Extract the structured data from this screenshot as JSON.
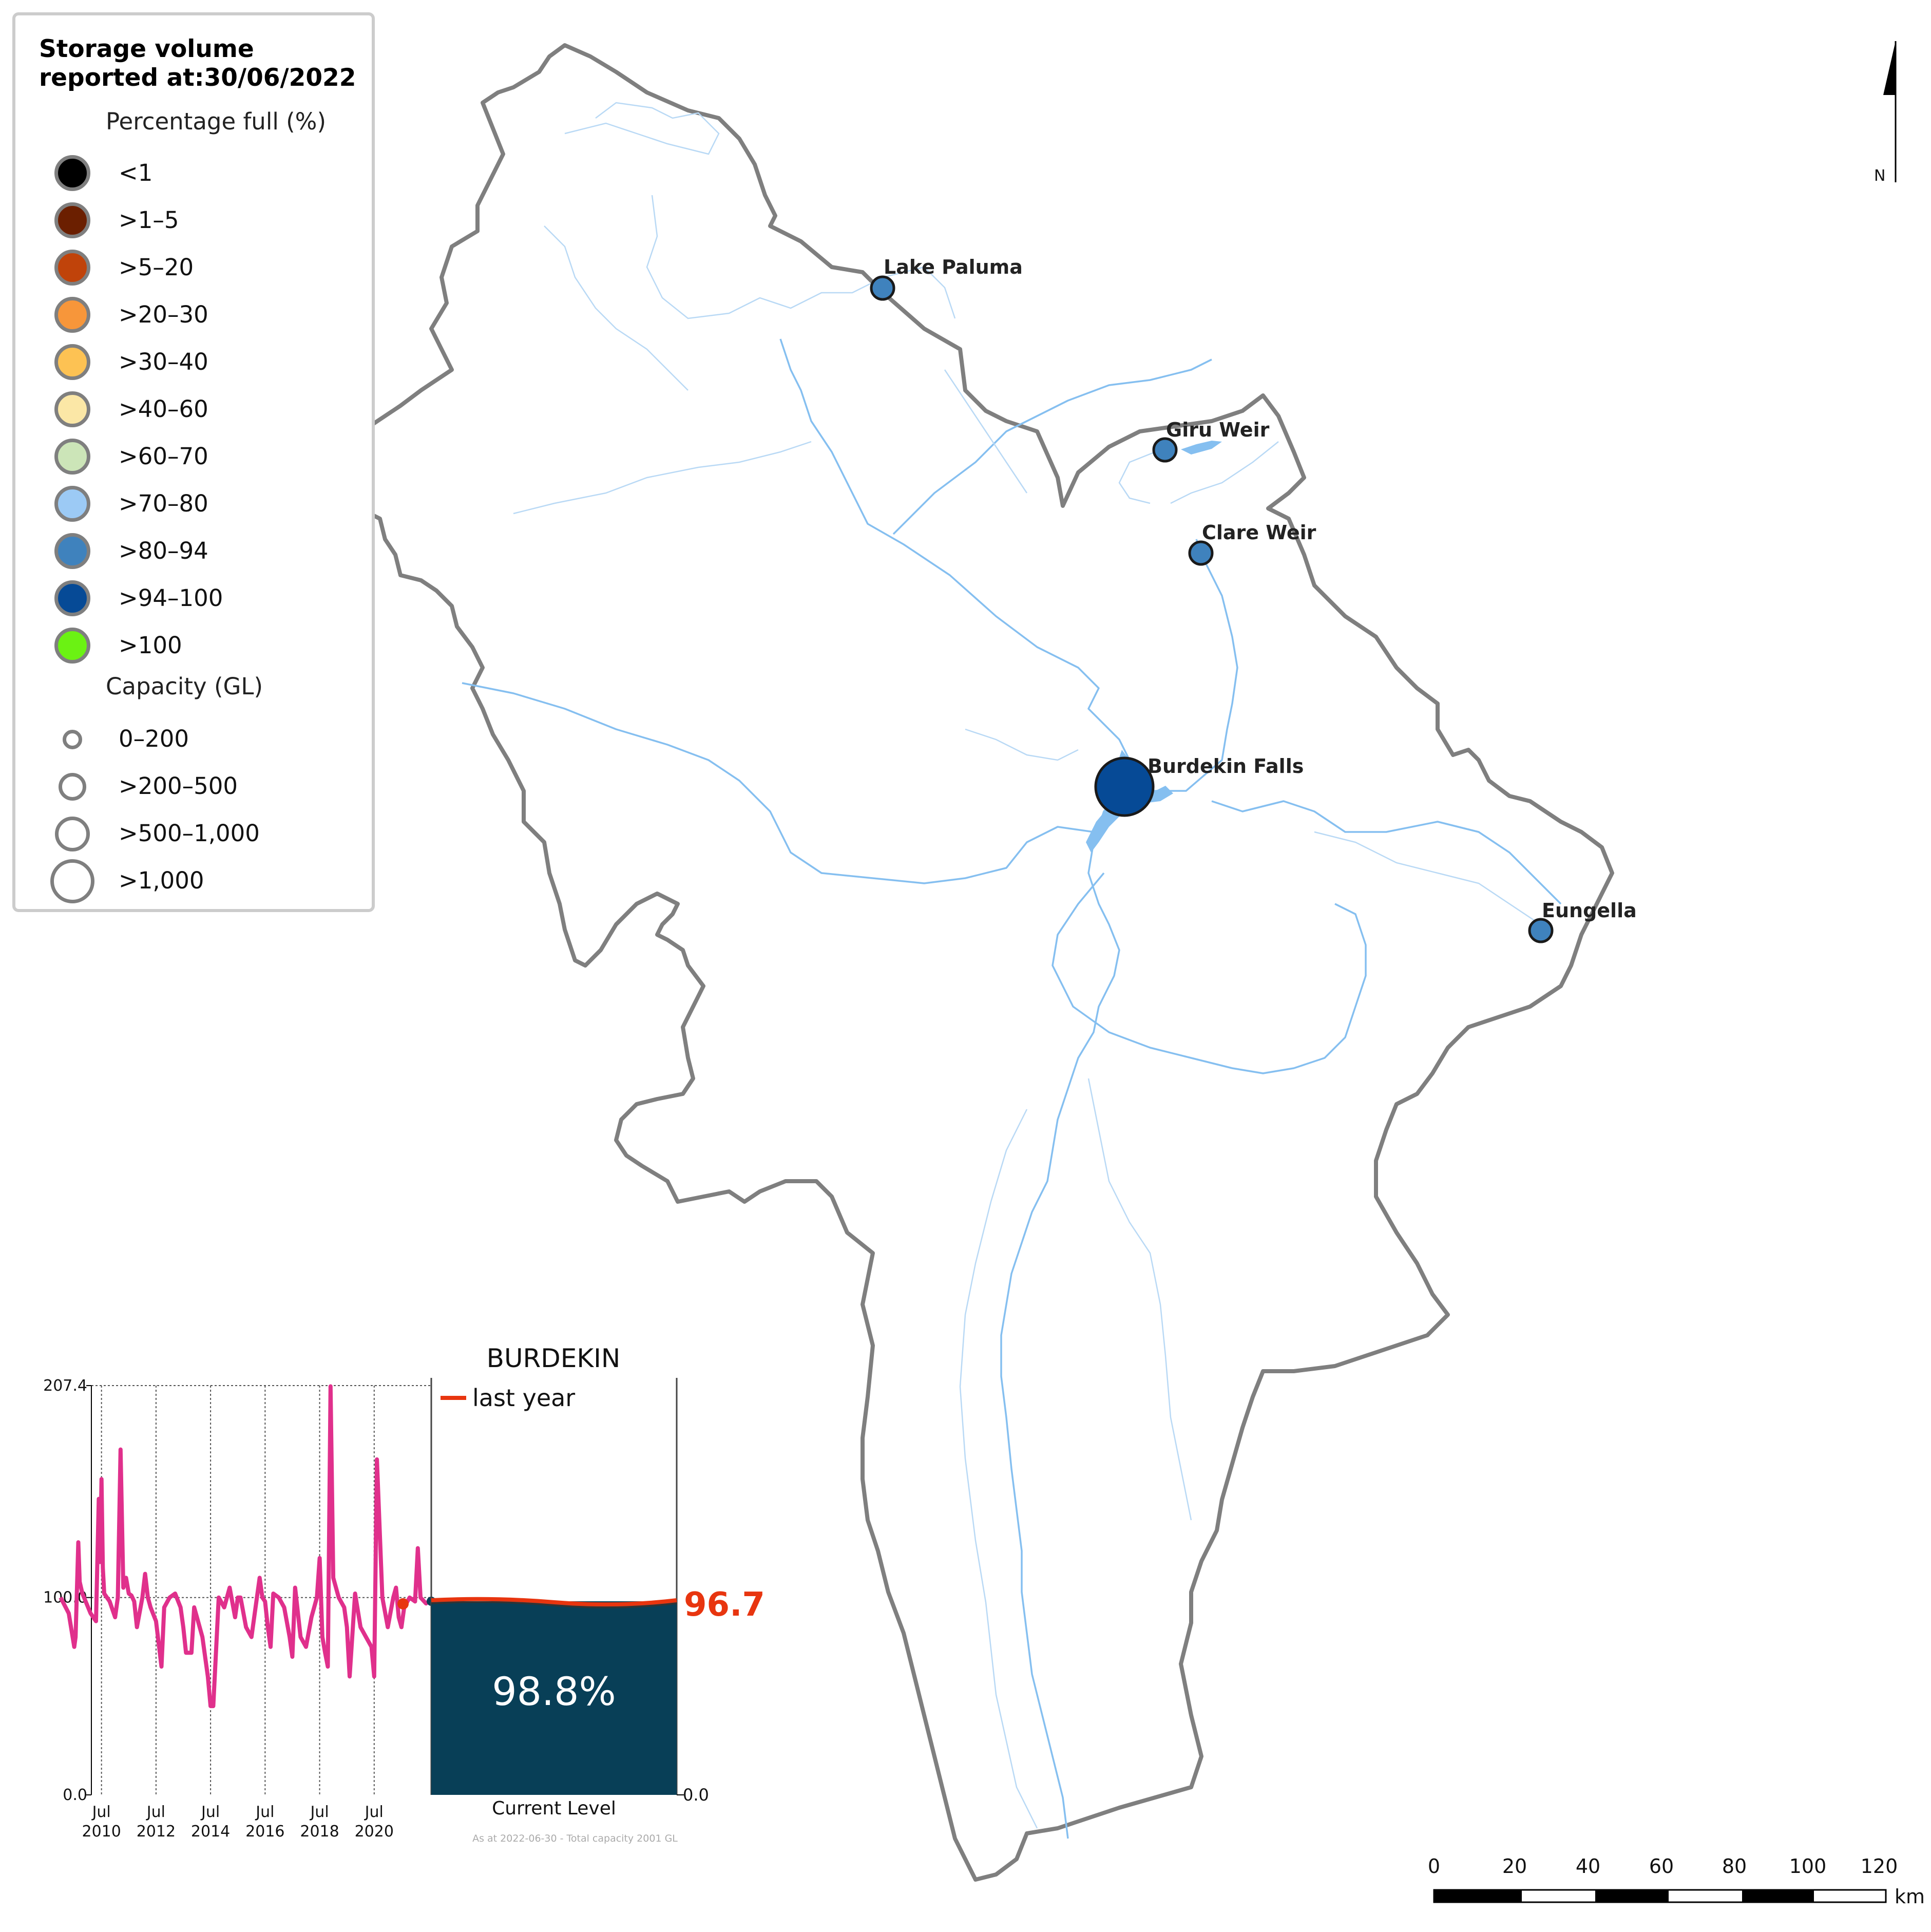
{
  "legend": {
    "title_line1": "Storage volume",
    "title_line2": "reported at:30/06/2022",
    "percentage_heading": "Percentage full (%)",
    "percentage_classes": [
      {
        "label": "<1",
        "color": "#000000"
      },
      {
        "label": ">1–5",
        "color": "#6b1f00"
      },
      {
        "label": ">5–20",
        "color": "#c0430a"
      },
      {
        "label": ">20–30",
        "color": "#f7963a"
      },
      {
        "label": ">30–40",
        "color": "#fdc253"
      },
      {
        "label": ">40–60",
        "color": "#fbe7a6"
      },
      {
        "label": ">60–70",
        "color": "#cce5b8"
      },
      {
        "label": ">70–80",
        "color": "#9ccaf5"
      },
      {
        "label": ">80–94",
        "color": "#3f82bd"
      },
      {
        "label": ">94–100",
        "color": "#064a96"
      },
      {
        "label": ">100",
        "color": "#6bf213"
      }
    ],
    "capacity_heading": "Capacity (GL)",
    "capacity_classes": [
      {
        "label": "0–200"
      },
      {
        "label": ">200–500"
      },
      {
        "label": ">500–1,000"
      },
      {
        "label": ">1,000"
      }
    ]
  },
  "north_arrow": {
    "label": "N"
  },
  "storages": [
    {
      "name": "Lake Paluma",
      "class": ">80–94"
    },
    {
      "name": "Giru Weir",
      "class": ">80–94"
    },
    {
      "name": "Clare Weir",
      "class": ">80–94"
    },
    {
      "name": "Burdekin Falls",
      "class": ">94–100"
    },
    {
      "name": "Eungella",
      "class": ">80–94"
    }
  ],
  "colors": {
    "boundary": "#7f7f7f",
    "river": "#85bff0",
    "river_minor": "#b9d9f5",
    "timeseries_line": "#e0308c",
    "last_year": "#e8350f",
    "gauge_fill": "#083f57"
  },
  "inset": {
    "title": "BURDEKIN",
    "legend_label": "last year",
    "current_percent_label": "98.8%",
    "last_year_value": "96.7",
    "current_level_label": "Current Level",
    "footnote": "As at 2022-06-30 - Total capacity 2001 GL",
    "right_axis_zero": "0.0"
  },
  "chart_data": {
    "type": "line",
    "title": "BURDEKIN",
    "y_ticks": [
      "0.0",
      "100.0",
      "207.4"
    ],
    "ylim": [
      0,
      207.4
    ],
    "x_ticks": [
      {
        "l1": "Jul",
        "l2": "2010"
      },
      {
        "l1": "Jul",
        "l2": "2012"
      },
      {
        "l1": "Jul",
        "l2": "2014"
      },
      {
        "l1": "Jul",
        "l2": "2016"
      },
      {
        "l1": "Jul",
        "l2": "2018"
      },
      {
        "l1": "Jul",
        "l2": "2020"
      }
    ],
    "series": [
      {
        "x": [
          2009.0,
          2009.3,
          2009.5,
          2009.55,
          2009.65,
          2009.7,
          2009.8,
          2010.1,
          2010.3,
          2010.4,
          2010.45,
          2010.5,
          2010.55,
          2010.6,
          2010.7,
          2010.8,
          2011.0,
          2011.1,
          2011.2,
          2011.3,
          2011.4,
          2011.5,
          2011.6,
          2011.7,
          2011.8,
          2012.0,
          2012.1,
          2012.2,
          2012.3,
          2012.5,
          2012.7,
          2012.8,
          2013.0,
          2013.2,
          2013.4,
          2013.5,
          2013.6,
          2013.8,
          2013.9,
          2014.0,
          2014.2,
          2014.4,
          2014.5,
          2014.6,
          2014.8,
          2015.0,
          2015.2,
          2015.4,
          2015.5,
          2015.6,
          2015.8,
          2016.0,
          2016.2,
          2016.3,
          2016.4,
          2016.5,
          2016.6,
          2016.7,
          2016.8,
          2017.0,
          2017.2,
          2017.4,
          2017.5,
          2017.6,
          2017.8,
          2018.0,
          2018.2,
          2018.4,
          2018.5,
          2018.6,
          2018.7,
          2018.8,
          2018.9,
          2019.0,
          2019.2,
          2019.4,
          2019.5,
          2019.6,
          2019.8,
          2020.0,
          2020.2,
          2020.4,
          2020.5,
          2020.6,
          2020.8,
          2021.0,
          2021.2,
          2021.3,
          2021.4,
          2021.5,
          2021.6,
          2021.8,
          2022.0,
          2022.1,
          2022.2,
          2022.4,
          2022.5
        ],
        "values": [
          100,
          92,
          75,
          80,
          128,
          108,
          102,
          92,
          88,
          150,
          118,
          160,
          115,
          102,
          100,
          98,
          90,
          100,
          175,
          105,
          110,
          102,
          101,
          98,
          85,
          100,
          112,
          100,
          95,
          88,
          65,
          95,
          100,
          102,
          95,
          85,
          72,
          72,
          95,
          90,
          80,
          60,
          45,
          45,
          100,
          95,
          105,
          90,
          100,
          100,
          85,
          80,
          100,
          110,
          100,
          98,
          85,
          75,
          102,
          100,
          95,
          80,
          70,
          105,
          80,
          75,
          90,
          100,
          120,
          80,
          72,
          65,
          207,
          110,
          100,
          95,
          85,
          60,
          102,
          85,
          80,
          75,
          60,
          170,
          100,
          85,
          100,
          105,
          90,
          85,
          95,
          100,
          98,
          125,
          100,
          97,
          98
        ]
      }
    ]
  },
  "scale_bar": {
    "ticks": [
      "0",
      "20",
      "40",
      "60",
      "80",
      "100",
      "120"
    ],
    "unit": "km"
  }
}
